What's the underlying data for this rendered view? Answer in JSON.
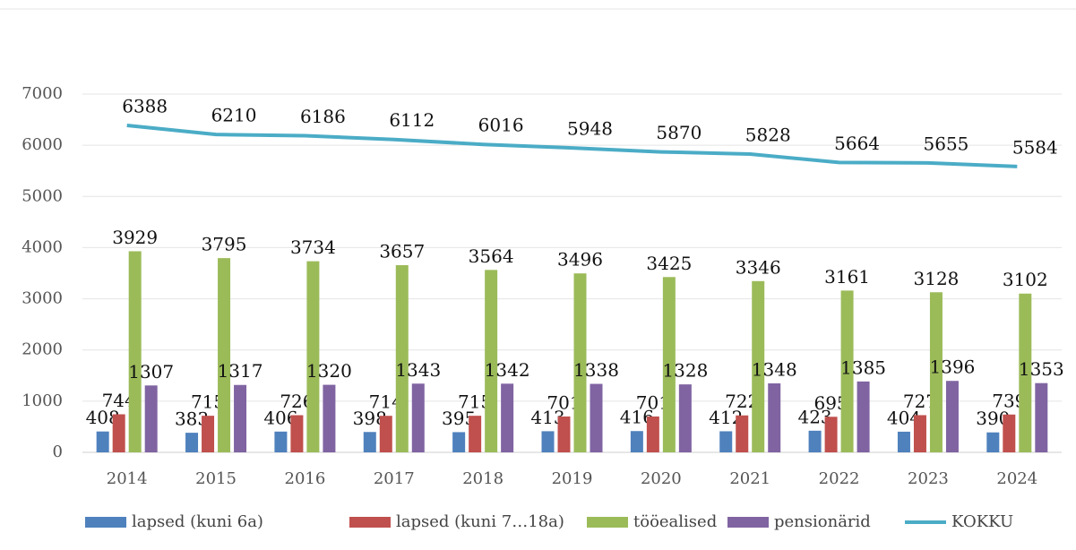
{
  "chart_data": {
    "type": "bar",
    "categories": [
      "2014",
      "2015",
      "2016",
      "2017",
      "2018",
      "2019",
      "2020",
      "2021",
      "2022",
      "2023",
      "2024"
    ],
    "series": [
      {
        "name": "lapsed (kuni 6a)",
        "color": "#4f81bd",
        "values": [
          408,
          383,
          406,
          398,
          395,
          413,
          416,
          412,
          423,
          404,
          390
        ]
      },
      {
        "name": "lapsed (kuni 7…18a)",
        "color": "#c0504d",
        "values": [
          744,
          715,
          726,
          714,
          715,
          701,
          701,
          722,
          695,
          727,
          739
        ]
      },
      {
        "name": "tööealised",
        "color": "#9bbb59",
        "values": [
          3929,
          3795,
          3734,
          3657,
          3564,
          3496,
          3425,
          3346,
          3161,
          3128,
          3102
        ]
      },
      {
        "name": "pensionärid",
        "color": "#8064a2",
        "values": [
          1307,
          1317,
          1320,
          1343,
          1342,
          1338,
          1328,
          1348,
          1385,
          1396,
          1353
        ]
      },
      {
        "name": "KOKKU",
        "color": "#4bacc6",
        "type": "line",
        "values": [
          6388,
          6210,
          6186,
          6112,
          6016,
          5948,
          5870,
          5828,
          5664,
          5655,
          5584
        ]
      }
    ],
    "ylim": [
      0,
      7000
    ],
    "yticks": [
      0,
      1000,
      2000,
      3000,
      4000,
      5000,
      6000,
      7000
    ],
    "grid": true,
    "legend": "bottom"
  }
}
